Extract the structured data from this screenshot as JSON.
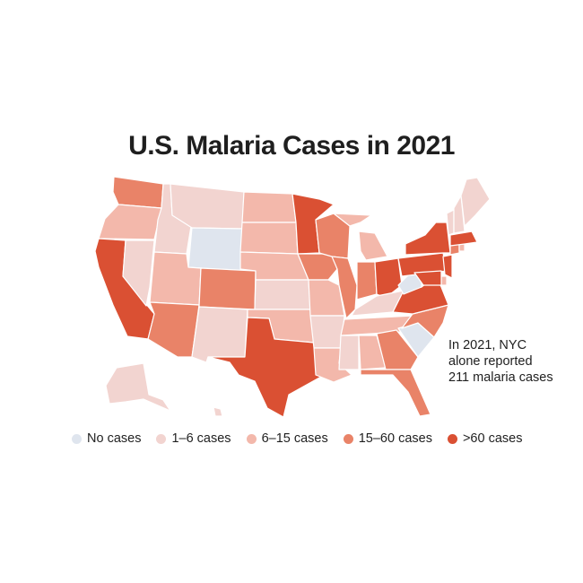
{
  "title": "U.S. Malaria Cases in 2021",
  "annotation": {
    "lines": [
      "In 2021, NYC",
      "alone reported",
      "211 malaria cases"
    ]
  },
  "legend": [
    {
      "label": "No cases",
      "color": "#dfe5ee"
    },
    {
      "label": "1–6 cases",
      "color": "#f2d4d0"
    },
    {
      "label": "6–15 cases",
      "color": "#f3b8ab"
    },
    {
      "label": "15–60 cases",
      "color": "#e98368"
    },
    {
      "label": ">60 cases",
      "color": "#da5033"
    }
  ],
  "states": [
    {
      "name": "Washington",
      "category": 3
    },
    {
      "name": "Oregon",
      "category": 2
    },
    {
      "name": "California",
      "category": 4
    },
    {
      "name": "Nevada",
      "category": 1
    },
    {
      "name": "Idaho",
      "category": 1
    },
    {
      "name": "Montana",
      "category": 1
    },
    {
      "name": "Wyoming",
      "category": 0
    },
    {
      "name": "Utah",
      "category": 2
    },
    {
      "name": "Arizona",
      "category": 3
    },
    {
      "name": "Colorado",
      "category": 3
    },
    {
      "name": "New Mexico",
      "category": 1
    },
    {
      "name": "North Dakota",
      "category": 2
    },
    {
      "name": "South Dakota",
      "category": 2
    },
    {
      "name": "Nebraska",
      "category": 2
    },
    {
      "name": "Kansas",
      "category": 1
    },
    {
      "name": "Oklahoma",
      "category": 2
    },
    {
      "name": "Texas",
      "category": 4
    },
    {
      "name": "Minnesota",
      "category": 4
    },
    {
      "name": "Iowa",
      "category": 3
    },
    {
      "name": "Missouri",
      "category": 2
    },
    {
      "name": "Arkansas",
      "category": 1
    },
    {
      "name": "Louisiana",
      "category": 2
    },
    {
      "name": "Wisconsin",
      "category": 3
    },
    {
      "name": "Illinois",
      "category": 3
    },
    {
      "name": "Michigan",
      "category": 2
    },
    {
      "name": "Indiana",
      "category": 3
    },
    {
      "name": "Ohio",
      "category": 4
    },
    {
      "name": "Kentucky",
      "category": 1
    },
    {
      "name": "Tennessee",
      "category": 2
    },
    {
      "name": "Mississippi",
      "category": 1
    },
    {
      "name": "Alabama",
      "category": 2
    },
    {
      "name": "Georgia",
      "category": 3
    },
    {
      "name": "Florida",
      "category": 3
    },
    {
      "name": "South Carolina",
      "category": 0
    },
    {
      "name": "North Carolina",
      "category": 3
    },
    {
      "name": "Virginia",
      "category": 4
    },
    {
      "name": "West Virginia",
      "category": 0
    },
    {
      "name": "Pennsylvania",
      "category": 4
    },
    {
      "name": "New York",
      "category": 4
    },
    {
      "name": "New Jersey",
      "category": 4
    },
    {
      "name": "Delaware",
      "category": 2
    },
    {
      "name": "Maryland",
      "category": 4
    },
    {
      "name": "Connecticut",
      "category": 3
    },
    {
      "name": "Rhode Island",
      "category": 2
    },
    {
      "name": "Massachusetts",
      "category": 4
    },
    {
      "name": "Vermont",
      "category": 1
    },
    {
      "name": "New Hampshire",
      "category": 1
    },
    {
      "name": "Maine",
      "category": 1
    },
    {
      "name": "Alaska",
      "category": 1
    },
    {
      "name": "Hawaii",
      "category": 1
    }
  ]
}
